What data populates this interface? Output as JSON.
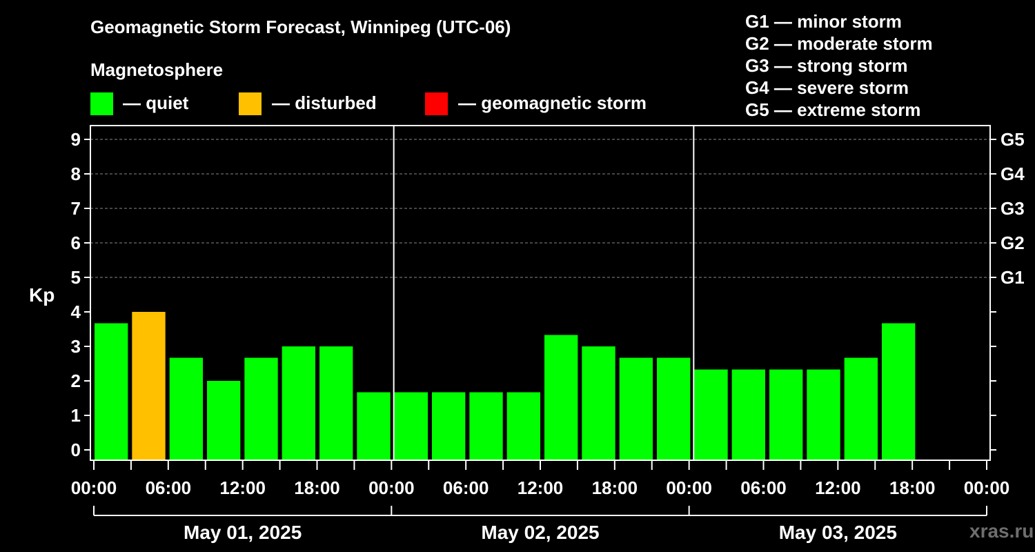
{
  "title": "Geomagnetic Storm Forecast, Winnipeg (UTC-06)",
  "legend": {
    "title": "Magnetosphere",
    "items": [
      {
        "label": "— quiet",
        "color": "#00ff00"
      },
      {
        "label": "— disturbed",
        "color": "#ffc000"
      },
      {
        "label": "— geomagnetic storm",
        "color": "#ff0000"
      }
    ]
  },
  "storm_levels": [
    "G1 — minor storm",
    "G2 — moderate storm",
    "G3 — strong storm",
    "G4 — severe storm",
    "G5 — extreme storm"
  ],
  "watermark": "xras.ru",
  "chart_data": {
    "type": "bar",
    "ylabel": "Kp",
    "xlabel": "",
    "ylim": [
      0,
      9
    ],
    "yticks": [
      "0",
      "1",
      "2",
      "3",
      "4",
      "5",
      "6",
      "7",
      "8",
      "9"
    ],
    "right_ticks": [
      {
        "kp": 5,
        "label": "G1"
      },
      {
        "kp": 6,
        "label": "G2"
      },
      {
        "kp": 7,
        "label": "G3"
      },
      {
        "kp": 8,
        "label": "G4"
      },
      {
        "kp": 9,
        "label": "G5"
      }
    ],
    "xtick_labels": [
      "00:00",
      "06:00",
      "12:00",
      "18:00",
      "00:00",
      "06:00",
      "12:00",
      "18:00",
      "00:00",
      "06:00",
      "12:00",
      "18:00",
      "00:00"
    ],
    "days": [
      "May 01, 2025",
      "May 02, 2025",
      "May 03, 2025"
    ],
    "grid": "dashed at Kp 5-9",
    "bars": [
      {
        "time": "May 01 00:00",
        "kp": 3.67,
        "status": "quiet"
      },
      {
        "time": "May 01 03:00",
        "kp": 4.0,
        "status": "disturbed"
      },
      {
        "time": "May 01 06:00",
        "kp": 2.67,
        "status": "quiet"
      },
      {
        "time": "May 01 09:00",
        "kp": 2.0,
        "status": "quiet"
      },
      {
        "time": "May 01 12:00",
        "kp": 2.67,
        "status": "quiet"
      },
      {
        "time": "May 01 15:00",
        "kp": 3.0,
        "status": "quiet"
      },
      {
        "time": "May 01 18:00",
        "kp": 3.0,
        "status": "quiet"
      },
      {
        "time": "May 01 21:00",
        "kp": 1.67,
        "status": "quiet"
      },
      {
        "time": "May 02 00:00",
        "kp": 1.67,
        "status": "quiet"
      },
      {
        "time": "May 02 03:00",
        "kp": 1.67,
        "status": "quiet"
      },
      {
        "time": "May 02 06:00",
        "kp": 1.67,
        "status": "quiet"
      },
      {
        "time": "May 02 09:00",
        "kp": 1.67,
        "status": "quiet"
      },
      {
        "time": "May 02 12:00",
        "kp": 3.33,
        "status": "quiet"
      },
      {
        "time": "May 02 15:00",
        "kp": 3.0,
        "status": "quiet"
      },
      {
        "time": "May 02 18:00",
        "kp": 2.67,
        "status": "quiet"
      },
      {
        "time": "May 02 21:00",
        "kp": 2.67,
        "status": "quiet"
      },
      {
        "time": "May 03 00:00",
        "kp": 2.33,
        "status": "quiet"
      },
      {
        "time": "May 03 03:00",
        "kp": 2.33,
        "status": "quiet"
      },
      {
        "time": "May 03 06:00",
        "kp": 2.33,
        "status": "quiet"
      },
      {
        "time": "May 03 09:00",
        "kp": 2.33,
        "status": "quiet"
      },
      {
        "time": "May 03 12:00",
        "kp": 2.67,
        "status": "quiet"
      },
      {
        "time": "May 03 15:00",
        "kp": 3.67,
        "status": "quiet"
      }
    ]
  }
}
